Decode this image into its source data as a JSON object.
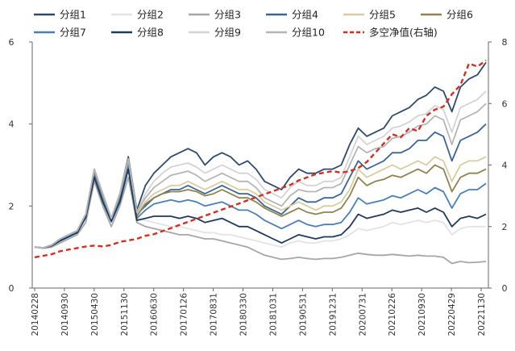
{
  "chart_data": {
    "type": "line",
    "title": "",
    "xlabel": "",
    "ylabel": "",
    "ylabel_right": "",
    "ylim": [
      0,
      6
    ],
    "ylim_right": [
      0,
      8
    ],
    "yticks": [
      "0",
      "2",
      "4",
      "6"
    ],
    "yticks_right": [
      "0",
      "2",
      "4",
      "6",
      "8"
    ],
    "grid": false,
    "legend_position": "top",
    "x_tick_labels": [
      "20140228",
      "20140930",
      "20150430",
      "20151130",
      "20160630",
      "20170126",
      "20170831",
      "20180330",
      "20181031",
      "20190531",
      "20191231",
      "20200731",
      "20210226",
      "20210930",
      "20220429",
      "20221130"
    ],
    "x": [
      "201402",
      "201404",
      "201406",
      "201408",
      "201410",
      "201412",
      "201502",
      "201504",
      "201506",
      "201508",
      "201510",
      "201512",
      "201602",
      "201604",
      "201606",
      "201608",
      "201610",
      "201612",
      "201702",
      "201704",
      "201706",
      "201708",
      "201710",
      "201712",
      "201802",
      "201804",
      "201806",
      "201808",
      "201810",
      "201812",
      "201902",
      "201904",
      "201906",
      "201908",
      "201910",
      "201912",
      "202002",
      "202004",
      "202006",
      "202008",
      "202010",
      "202012",
      "202102",
      "202104",
      "202106",
      "202108",
      "202110",
      "202112",
      "202202",
      "202204",
      "202206",
      "202208",
      "202210",
      "202212"
    ],
    "series": [
      {
        "name": "分组1",
        "color": "#2e4a6e",
        "dash": "solid",
        "axis": "left",
        "values": [
          1.0,
          0.98,
          1.05,
          1.2,
          1.3,
          1.4,
          1.8,
          2.9,
          2.3,
          1.7,
          2.3,
          3.2,
          1.9,
          2.5,
          2.8,
          3.0,
          3.2,
          3.3,
          3.4,
          3.3,
          3.0,
          3.2,
          3.3,
          3.2,
          3.0,
          3.1,
          2.9,
          2.6,
          2.5,
          2.4,
          2.7,
          2.9,
          2.8,
          2.8,
          2.9,
          2.9,
          3.0,
          3.5,
          3.9,
          3.7,
          3.8,
          3.9,
          4.2,
          4.3,
          4.4,
          4.6,
          4.7,
          4.9,
          4.8,
          4.3,
          4.9,
          5.1,
          5.2,
          5.5
        ]
      },
      {
        "name": "分组2",
        "color": "#e3e3e3",
        "dash": "solid",
        "axis": "left",
        "values": [
          1.0,
          0.98,
          1.02,
          1.15,
          1.25,
          1.35,
          1.7,
          2.7,
          2.1,
          1.6,
          2.1,
          2.9,
          1.7,
          1.65,
          1.6,
          1.55,
          1.5,
          1.5,
          1.45,
          1.4,
          1.35,
          1.35,
          1.3,
          1.3,
          1.25,
          1.2,
          1.15,
          1.1,
          1.05,
          1.0,
          1.1,
          1.15,
          1.1,
          1.1,
          1.15,
          1.15,
          1.2,
          1.3,
          1.45,
          1.4,
          1.45,
          1.5,
          1.6,
          1.55,
          1.6,
          1.65,
          1.6,
          1.65,
          1.6,
          1.3,
          1.45,
          1.5,
          1.5,
          1.5
        ]
      },
      {
        "name": "分组3",
        "color": "#a6a6a6",
        "dash": "solid",
        "axis": "left",
        "values": [
          1.0,
          0.97,
          1.0,
          1.1,
          1.2,
          1.3,
          1.6,
          2.6,
          2.0,
          1.5,
          2.0,
          2.7,
          1.6,
          1.5,
          1.45,
          1.4,
          1.35,
          1.3,
          1.3,
          1.25,
          1.2,
          1.2,
          1.15,
          1.1,
          1.05,
          1.0,
          0.9,
          0.8,
          0.75,
          0.7,
          0.72,
          0.75,
          0.72,
          0.7,
          0.72,
          0.72,
          0.75,
          0.8,
          0.85,
          0.82,
          0.8,
          0.8,
          0.82,
          0.8,
          0.78,
          0.8,
          0.78,
          0.78,
          0.75,
          0.6,
          0.65,
          0.62,
          0.63,
          0.65
        ]
      },
      {
        "name": "分组4",
        "color": "#3a6595",
        "dash": "solid",
        "axis": "left",
        "values": [
          1.0,
          0.98,
          1.05,
          1.2,
          1.3,
          1.4,
          1.8,
          2.85,
          2.25,
          1.7,
          2.25,
          3.1,
          1.8,
          2.0,
          2.2,
          2.3,
          2.4,
          2.4,
          2.5,
          2.4,
          2.3,
          2.4,
          2.5,
          2.4,
          2.3,
          2.3,
          2.2,
          2.0,
          1.9,
          1.8,
          2.0,
          2.2,
          2.1,
          2.1,
          2.2,
          2.2,
          2.3,
          2.7,
          3.1,
          2.9,
          3.0,
          3.1,
          3.3,
          3.3,
          3.4,
          3.6,
          3.6,
          3.8,
          3.7,
          3.1,
          3.6,
          3.7,
          3.8,
          4.0
        ]
      },
      {
        "name": "分组5",
        "color": "#d9cc9f",
        "dash": "solid",
        "axis": "left",
        "values": [
          1.0,
          0.98,
          1.04,
          1.18,
          1.28,
          1.38,
          1.78,
          2.8,
          2.2,
          1.68,
          2.2,
          3.0,
          1.8,
          2.1,
          2.3,
          2.4,
          2.5,
          2.5,
          2.6,
          2.5,
          2.4,
          2.5,
          2.6,
          2.5,
          2.4,
          2.4,
          2.3,
          2.1,
          2.0,
          1.9,
          2.0,
          2.1,
          2.0,
          1.9,
          2.0,
          2.0,
          2.1,
          2.4,
          2.9,
          2.7,
          2.8,
          2.9,
          3.0,
          2.9,
          3.0,
          3.1,
          3.0,
          3.2,
          3.1,
          2.6,
          3.0,
          3.1,
          3.1,
          3.2
        ]
      },
      {
        "name": "分组6",
        "color": "#8f8350",
        "dash": "solid",
        "axis": "left",
        "values": [
          1.0,
          0.98,
          1.04,
          1.18,
          1.28,
          1.38,
          1.78,
          2.8,
          2.2,
          1.68,
          2.2,
          3.0,
          1.75,
          2.05,
          2.2,
          2.3,
          2.35,
          2.35,
          2.4,
          2.35,
          2.25,
          2.3,
          2.4,
          2.3,
          2.2,
          2.2,
          2.1,
          1.95,
          1.85,
          1.75,
          1.85,
          1.95,
          1.85,
          1.8,
          1.85,
          1.85,
          1.95,
          2.25,
          2.7,
          2.5,
          2.6,
          2.65,
          2.75,
          2.7,
          2.8,
          2.9,
          2.8,
          3.0,
          2.9,
          2.35,
          2.7,
          2.8,
          2.8,
          2.9
        ]
      },
      {
        "name": "分组7",
        "color": "#4a7fb5",
        "dash": "solid",
        "axis": "left",
        "values": [
          1.0,
          0.98,
          1.04,
          1.17,
          1.27,
          1.37,
          1.75,
          2.75,
          2.15,
          1.65,
          2.15,
          2.95,
          1.7,
          1.9,
          2.05,
          2.1,
          2.15,
          2.1,
          2.15,
          2.1,
          2.0,
          2.05,
          2.1,
          2.0,
          1.9,
          1.9,
          1.8,
          1.65,
          1.55,
          1.45,
          1.55,
          1.65,
          1.55,
          1.5,
          1.55,
          1.55,
          1.6,
          1.85,
          2.2,
          2.05,
          2.1,
          2.15,
          2.25,
          2.2,
          2.3,
          2.4,
          2.3,
          2.45,
          2.35,
          1.95,
          2.3,
          2.4,
          2.4,
          2.55
        ]
      },
      {
        "name": "分组8",
        "color": "#1f3a5c",
        "dash": "solid",
        "axis": "left",
        "values": [
          1.0,
          0.98,
          1.03,
          1.15,
          1.25,
          1.35,
          1.72,
          2.7,
          2.1,
          1.62,
          2.1,
          2.9,
          1.65,
          1.7,
          1.75,
          1.75,
          1.75,
          1.7,
          1.75,
          1.7,
          1.6,
          1.65,
          1.7,
          1.6,
          1.5,
          1.5,
          1.4,
          1.3,
          1.2,
          1.1,
          1.2,
          1.3,
          1.25,
          1.2,
          1.25,
          1.25,
          1.3,
          1.5,
          1.8,
          1.7,
          1.75,
          1.8,
          1.9,
          1.85,
          1.9,
          1.95,
          1.85,
          1.95,
          1.85,
          1.5,
          1.7,
          1.75,
          1.7,
          1.8
        ]
      },
      {
        "name": "分组9",
        "color": "#d3d3d3",
        "dash": "solid",
        "axis": "left",
        "values": [
          1.0,
          0.98,
          1.05,
          1.2,
          1.3,
          1.4,
          1.8,
          2.9,
          2.3,
          1.7,
          2.3,
          3.15,
          1.85,
          2.3,
          2.6,
          2.8,
          2.95,
          3.0,
          3.05,
          2.95,
          2.8,
          2.9,
          3.0,
          2.9,
          2.8,
          2.8,
          2.65,
          2.4,
          2.3,
          2.2,
          2.45,
          2.6,
          2.5,
          2.5,
          2.6,
          2.6,
          2.7,
          3.2,
          3.7,
          3.5,
          3.6,
          3.7,
          3.9,
          3.95,
          4.05,
          4.2,
          4.25,
          4.45,
          4.35,
          3.8,
          4.4,
          4.5,
          4.6,
          4.8
        ]
      },
      {
        "name": "分组10",
        "color": "#b5b5b5",
        "dash": "solid",
        "axis": "left",
        "values": [
          1.0,
          0.98,
          1.05,
          1.2,
          1.3,
          1.4,
          1.8,
          2.9,
          2.3,
          1.7,
          2.3,
          3.15,
          1.85,
          2.2,
          2.45,
          2.6,
          2.75,
          2.8,
          2.85,
          2.75,
          2.6,
          2.7,
          2.8,
          2.7,
          2.6,
          2.6,
          2.45,
          2.2,
          2.1,
          2.0,
          2.25,
          2.4,
          2.35,
          2.35,
          2.45,
          2.45,
          2.55,
          3.0,
          3.45,
          3.3,
          3.4,
          3.45,
          3.65,
          3.7,
          3.8,
          3.95,
          4.0,
          4.2,
          4.1,
          3.5,
          4.1,
          4.2,
          4.3,
          4.5
        ]
      },
      {
        "name": "多空净值(右轴)",
        "color": "#d62d20",
        "dash": "dashed",
        "axis": "right",
        "values": [
          1.0,
          1.05,
          1.1,
          1.2,
          1.25,
          1.3,
          1.35,
          1.38,
          1.35,
          1.4,
          1.5,
          1.55,
          1.6,
          1.7,
          1.75,
          1.85,
          1.95,
          2.05,
          2.15,
          2.25,
          2.35,
          2.45,
          2.55,
          2.65,
          2.75,
          2.85,
          2.95,
          3.05,
          3.15,
          3.25,
          3.35,
          3.5,
          3.6,
          3.7,
          3.75,
          3.8,
          3.75,
          3.8,
          3.9,
          4.1,
          4.4,
          4.7,
          5.0,
          4.9,
          5.2,
          5.1,
          5.6,
          5.8,
          5.9,
          6.3,
          6.6,
          7.3,
          7.2,
          7.4
        ]
      }
    ]
  }
}
